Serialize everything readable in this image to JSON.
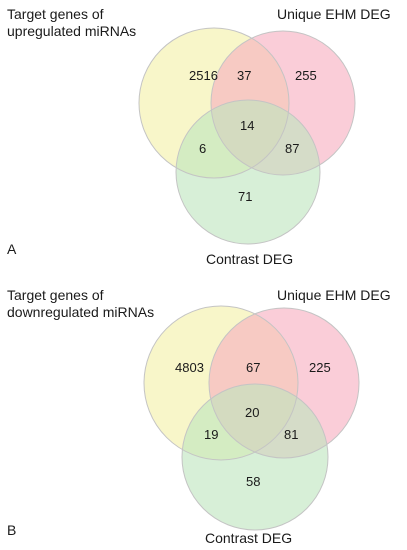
{
  "panels": [
    {
      "letter": "A",
      "set_a_label": [
        "Target genes of",
        "upregulated miRNAs"
      ],
      "set_b_label": "Unique EHM DEG",
      "set_c_label": "Contrast DEG",
      "counts": {
        "only_a": "2516",
        "a_and_b": "37",
        "only_b": "255",
        "a_and_c": "6",
        "all_three": "14",
        "b_and_c": "87",
        "only_c": "71"
      }
    },
    {
      "letter": "B",
      "set_a_label": [
        "Target genes of",
        "downregulated miRNAs"
      ],
      "set_b_label": "Unique EHM DEG",
      "set_c_label": "Contrast DEG",
      "counts": {
        "only_a": "4803",
        "a_and_b": "67",
        "only_b": "225",
        "a_and_c": "19",
        "all_three": "20",
        "b_and_c": "81",
        "only_c": "58"
      }
    }
  ],
  "colors": {
    "set_a": "#f3f1a8",
    "set_b": "#f7aec0",
    "set_c": "#bfe5bf",
    "outline": "#c4c4c4"
  }
}
